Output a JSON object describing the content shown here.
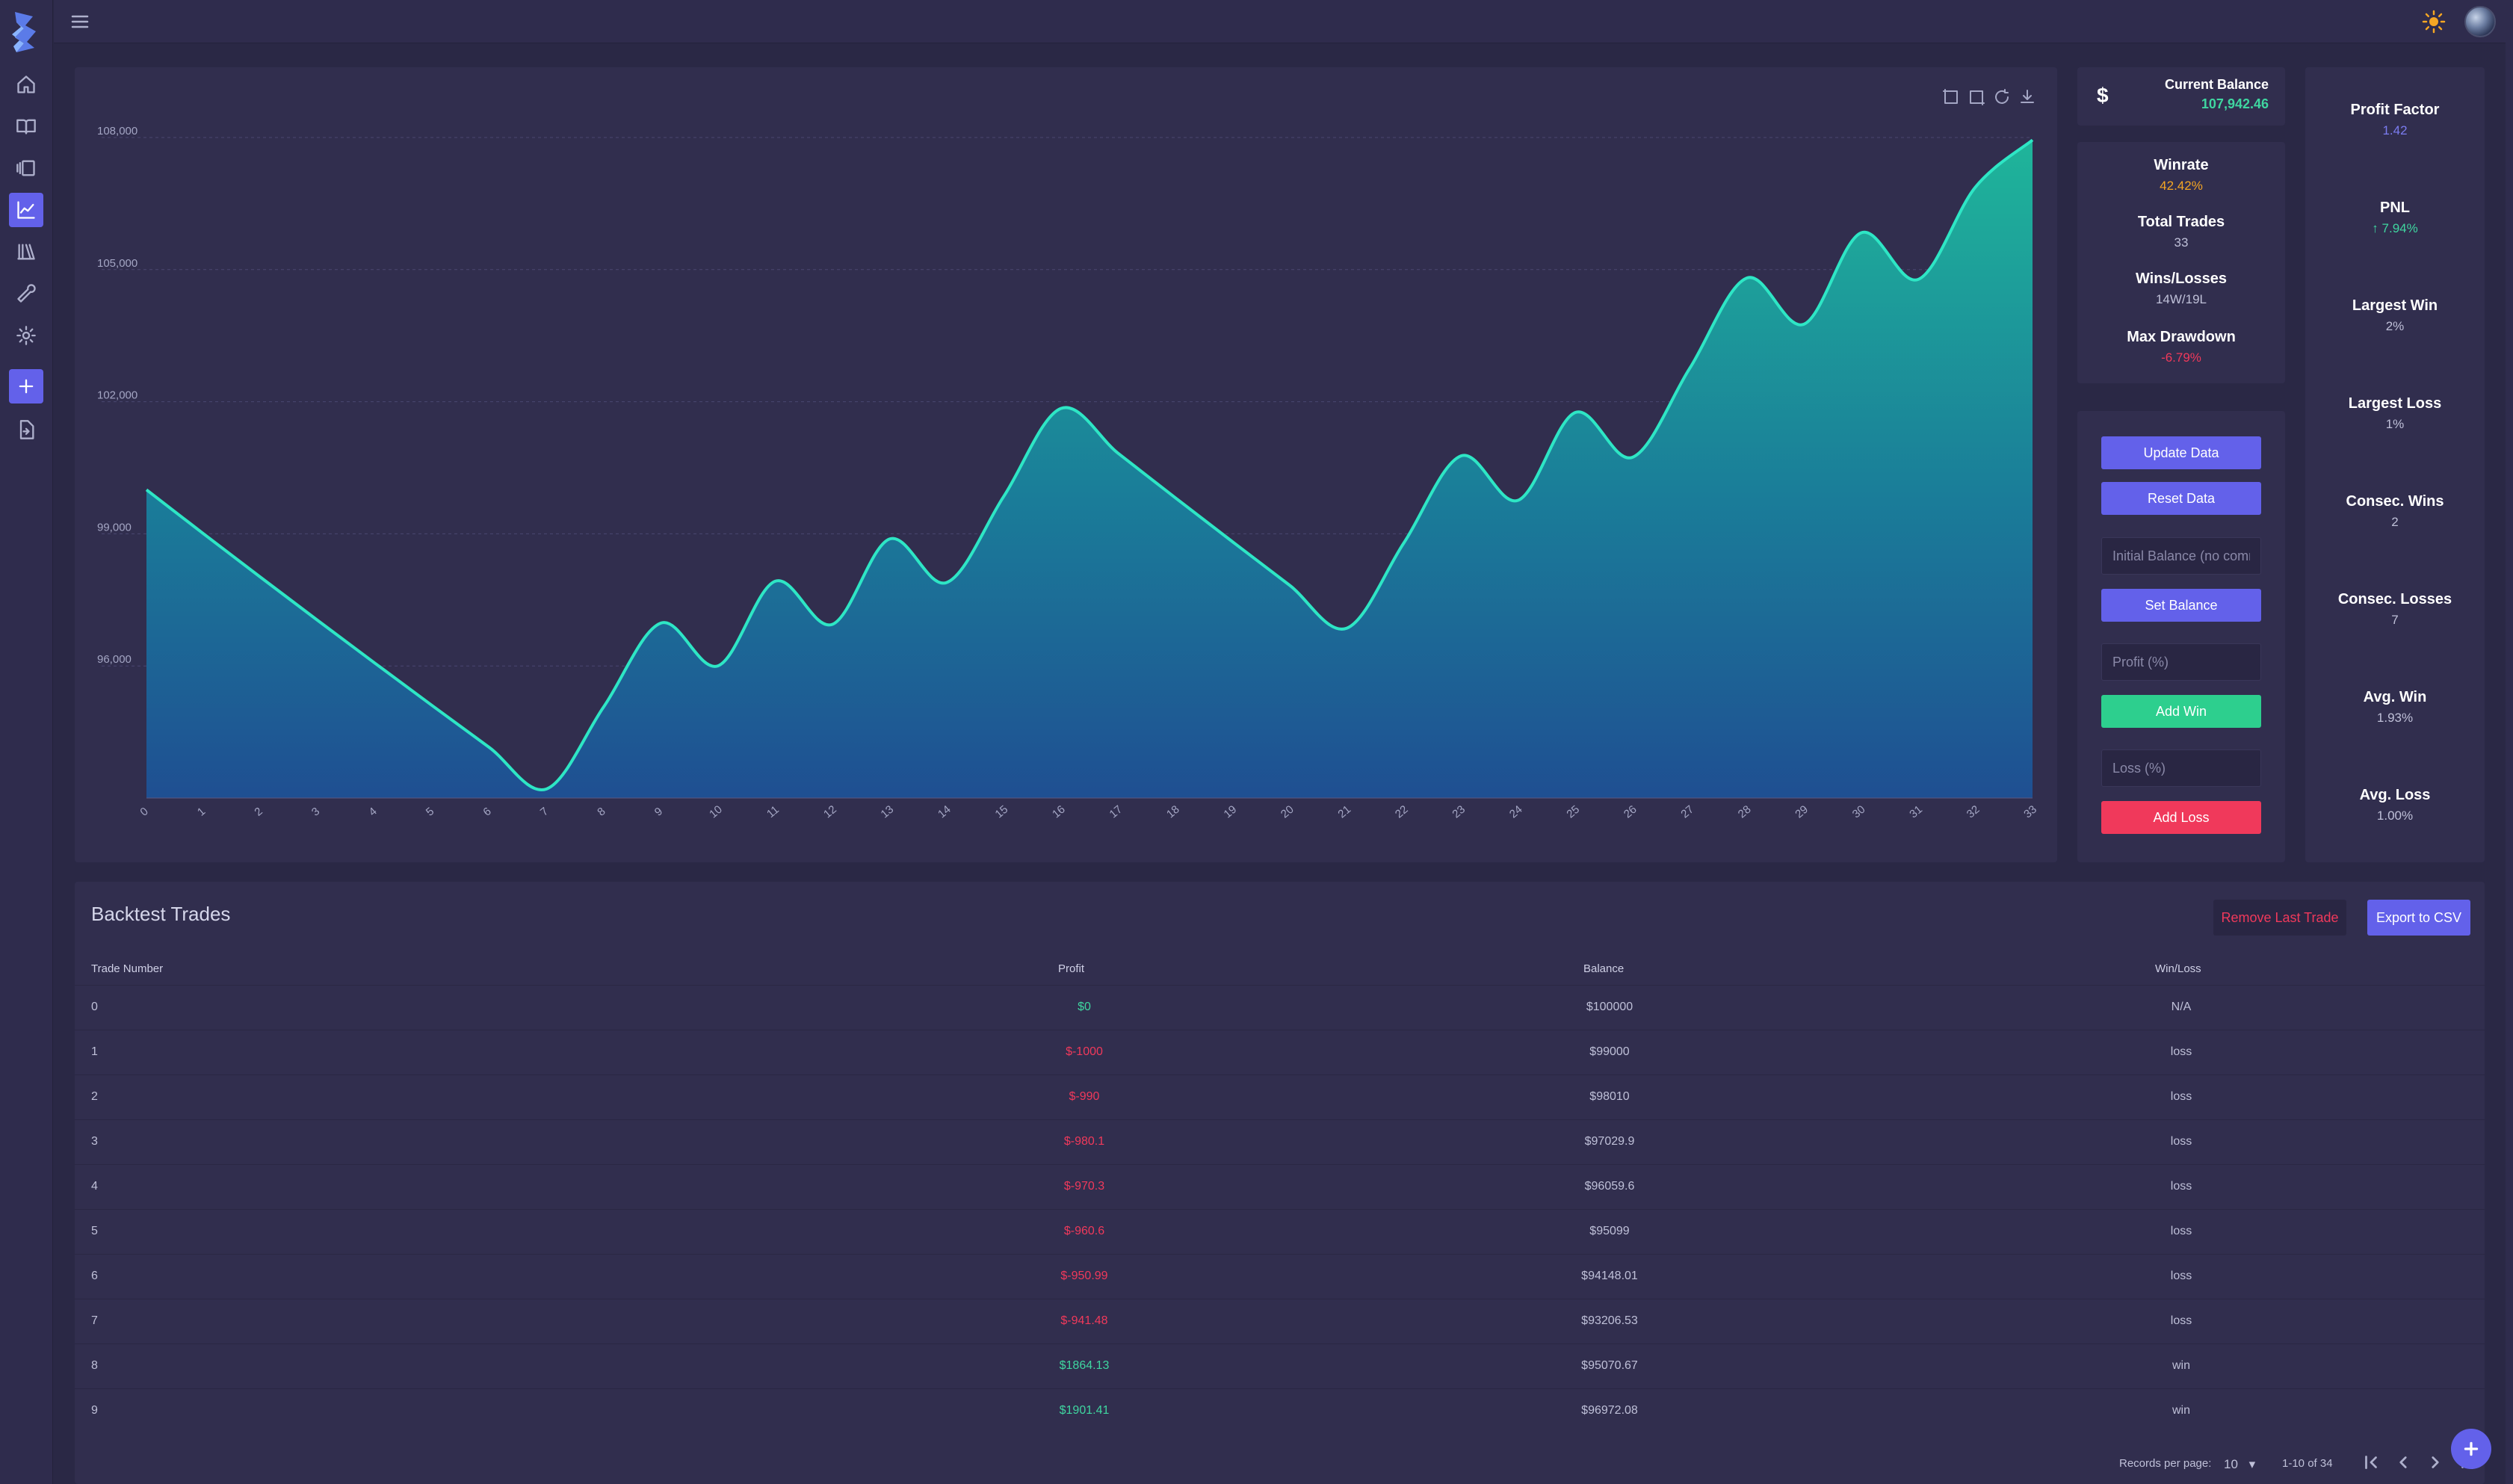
{
  "nav": {
    "items": [
      "home-icon",
      "book-open-icon",
      "columns-icon",
      "chart-line-icon",
      "library-icon",
      "wrench-icon",
      "gear-icon",
      "plus-icon",
      "file-import-icon"
    ],
    "active": "chart-line-icon"
  },
  "balance": {
    "symbol": "$",
    "label": "Current Balance",
    "value": "107,942.46"
  },
  "stats": {
    "winrate_label": "Winrate",
    "winrate": "42.42%",
    "total_trades_label": "Total Trades",
    "total_trades": "33",
    "winslosses_label": "Wins/Losses",
    "winslosses": "14W/19L",
    "max_drawdown_label": "Max Drawdown",
    "max_drawdown": "-6.79%"
  },
  "controls": {
    "update_label": "Update Data",
    "reset_label": "Reset Data",
    "initial_balance_placeholder": "Initial Balance (no comm",
    "set_balance_label": "Set Balance",
    "profit_placeholder": "Profit (%)",
    "add_win_label": "Add Win",
    "loss_placeholder": "Loss (%)",
    "add_loss_label": "Add Loss"
  },
  "metrics": {
    "profit_factor_label": "Profit Factor",
    "profit_factor": "1.42",
    "pnl_label": "PNL",
    "pnl": "7.94%",
    "largest_win_label": "Largest Win",
    "largest_win": "2%",
    "largest_loss_label": "Largest Loss",
    "largest_loss": "1%",
    "consec_wins_label": "Consec. Wins",
    "consec_wins": "2",
    "consec_losses_label": "Consec. Losses",
    "consec_losses": "7",
    "avg_win_label": "Avg. Win",
    "avg_win": "1.93%",
    "avg_loss_label": "Avg. Loss",
    "avg_loss": "1.00%"
  },
  "colors": {
    "accent": "#6361ea",
    "positive": "#3fd6a0",
    "negative": "#f0395b",
    "winrate": "#f5a623",
    "profit_factor": "#7b7cf0"
  },
  "chart_data": {
    "type": "area",
    "x": [
      0,
      1,
      2,
      3,
      4,
      5,
      6,
      7,
      8,
      9,
      10,
      11,
      12,
      13,
      14,
      15,
      16,
      17,
      18,
      19,
      20,
      21,
      22,
      23,
      24,
      25,
      26,
      27,
      28,
      29,
      30,
      31,
      32,
      33
    ],
    "y": [
      100000,
      99000,
      98010,
      97029.9,
      96059.6,
      95099,
      94148.01,
      93206.53,
      95070.67,
      96972.08,
      96002,
      97922,
      96943,
      98882,
      97893,
      99850,
      101847,
      100829,
      99820,
      98822,
      97834,
      96856,
      98793,
      100769,
      99761,
      101756,
      100738,
      102753,
      104808,
      103760,
      105835,
      104777,
      106872,
      107942.46
    ],
    "yticks": [
      "108,000",
      "105,000",
      "102,000",
      "99,000",
      "96,000"
    ],
    "ylim": [
      93000,
      108000
    ],
    "grid": true,
    "line_color": "#2ee6c5"
  },
  "table": {
    "title": "Backtest Trades",
    "remove_label": "Remove Last Trade",
    "export_label": "Export to CSV",
    "headers": [
      "Trade Number",
      "Profit",
      "Balance",
      "Win/Loss"
    ],
    "rows": [
      [
        "0",
        "$0",
        "$100000",
        "N/A"
      ],
      [
        "1",
        "$-1000",
        "$99000",
        "loss"
      ],
      [
        "2",
        "$-990",
        "$98010",
        "loss"
      ],
      [
        "3",
        "$-980.1",
        "$97029.9",
        "loss"
      ],
      [
        "4",
        "$-970.3",
        "$96059.6",
        "loss"
      ],
      [
        "5",
        "$-960.6",
        "$95099",
        "loss"
      ],
      [
        "6",
        "$-950.99",
        "$94148.01",
        "loss"
      ],
      [
        "7",
        "$-941.48",
        "$93206.53",
        "loss"
      ],
      [
        "8",
        "$1864.13",
        "$95070.67",
        "win"
      ],
      [
        "9",
        "$1901.41",
        "$96972.08",
        "win"
      ]
    ],
    "records_label": "Records per page:",
    "records_value": "10",
    "range_label": "1-10 of 34"
  }
}
